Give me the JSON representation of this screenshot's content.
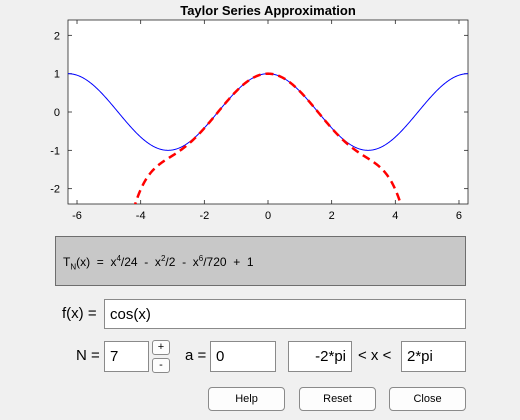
{
  "chart_data": {
    "type": "line",
    "title": "Taylor Series Approximation",
    "xlim": [
      -6.28319,
      6.28319
    ],
    "ylim": [
      -2.4,
      2.4
    ],
    "x_ticks": [
      -6,
      -4,
      -2,
      0,
      2,
      4,
      6
    ],
    "y_ticks": [
      -2,
      -1,
      0,
      1,
      2
    ],
    "grid": false,
    "series": [
      {
        "function": "cos(x)",
        "color": "#0000ff",
        "style": "solid"
      },
      {
        "function": "x^4/24 - x^2/2 - x^6/720 + 1",
        "color": "#ff0000",
        "style": "dashed"
      }
    ]
  },
  "formula": {
    "prefix": "T",
    "sub": "N",
    "t1": "(x)  =  x",
    "e1": "4",
    "t2": "/24  -  x",
    "e2": "2",
    "t3": "/2  -  x",
    "e3": "6",
    "t4": "/720  +  1"
  },
  "fx": {
    "label": "f(x) =",
    "value": "cos(x)"
  },
  "n": {
    "label": "N =",
    "value": "7",
    "plus": "+",
    "minus": "-"
  },
  "a": {
    "label": "a =",
    "value": "0"
  },
  "range": {
    "min": "-2*pi",
    "sep": "< x <",
    "max": "2*pi"
  },
  "buttons": {
    "help": "Help",
    "reset": "Reset",
    "close": "Close"
  }
}
